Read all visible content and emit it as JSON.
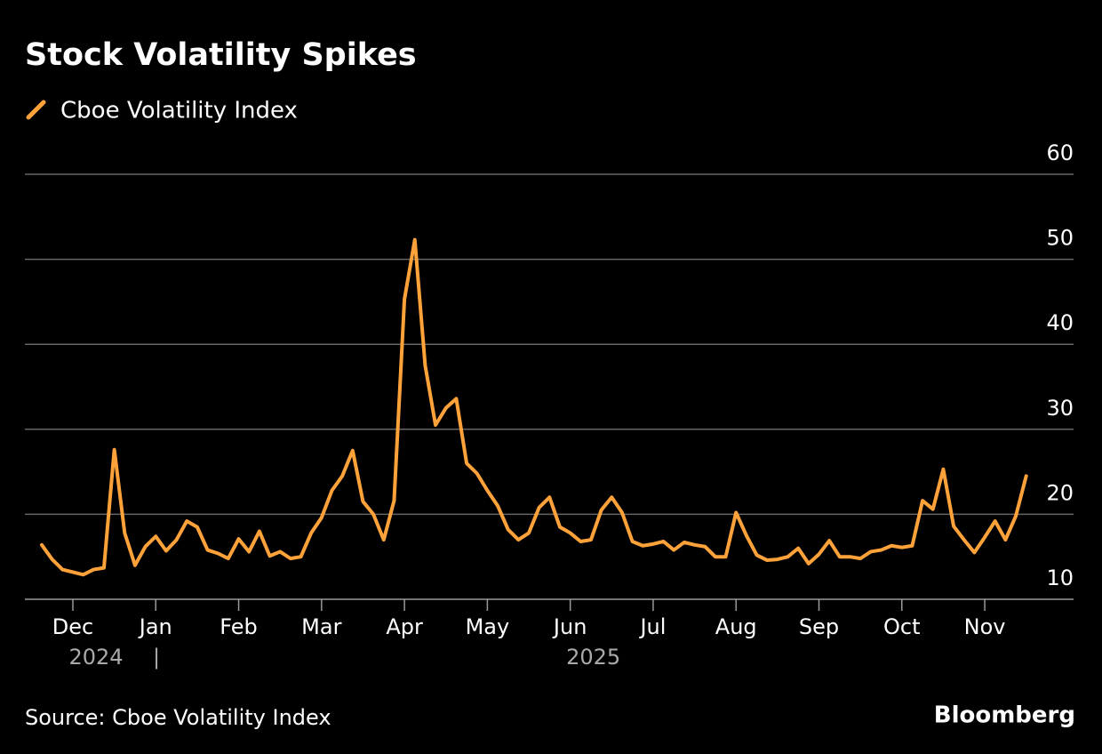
{
  "chart_data": {
    "type": "line",
    "title": "Stock Volatility Spikes",
    "source": "Source: Cboe Volatility Index",
    "logo": "Bloomberg",
    "years": [
      "2024",
      "2025"
    ],
    "categories": [
      null,
      null,
      null,
      "Dec",
      null,
      null,
      null,
      null,
      null,
      null,
      null,
      "Jan",
      null,
      null,
      null,
      null,
      null,
      null,
      null,
      "Feb",
      null,
      null,
      null,
      null,
      null,
      null,
      null,
      "Mar",
      null,
      null,
      null,
      null,
      null,
      null,
      null,
      "Apr",
      null,
      null,
      null,
      null,
      null,
      null,
      null,
      "May",
      null,
      null,
      null,
      null,
      null,
      null,
      null,
      "Jun",
      null,
      null,
      null,
      null,
      null,
      null,
      null,
      "Jul",
      null,
      null,
      null,
      null,
      null,
      null,
      null,
      "Aug",
      null,
      null,
      null,
      null,
      null,
      null,
      null,
      "Sep",
      null,
      null,
      null,
      null,
      null,
      null,
      null,
      "Oct",
      null,
      null,
      null,
      null,
      null,
      null,
      null,
      "Nov",
      null,
      null,
      null,
      null
    ],
    "series": [
      {
        "name": "Cboe Volatility Index",
        "color": "#ffa23a",
        "values": [
          16.4,
          14.7,
          13.5,
          13.2,
          12.9,
          13.5,
          13.7,
          27.6,
          17.8,
          14.0,
          16.2,
          17.4,
          15.7,
          17.0,
          19.2,
          18.5,
          15.8,
          15.4,
          14.8,
          17.1,
          15.6,
          18.0,
          15.1,
          15.6,
          14.8,
          15.0,
          17.8,
          19.6,
          22.8,
          24.5,
          27.5,
          21.5,
          20.0,
          17.0,
          21.6,
          45.3,
          52.3,
          37.5,
          30.5,
          32.5,
          33.6,
          26.0,
          24.8,
          22.8,
          21.0,
          18.2,
          17.0,
          17.8,
          20.8,
          22.0,
          18.5,
          17.8,
          16.8,
          17.0,
          20.5,
          22.0,
          20.2,
          16.8,
          16.3,
          16.5,
          16.8,
          15.8,
          16.7,
          16.4,
          16.2,
          15.0,
          15.0,
          20.2,
          17.5,
          15.2,
          14.6,
          14.7,
          15.0,
          16.0,
          14.2,
          15.3,
          16.9,
          15.0,
          15.0,
          14.8,
          15.6,
          15.8,
          16.3,
          16.1,
          16.3,
          21.6,
          20.6,
          25.3,
          18.6,
          17.0,
          15.5,
          17.3,
          19.2,
          17.0,
          19.8,
          24.5
        ]
      }
    ],
    "ylim": [
      10,
      60
    ],
    "yticks": [
      10,
      20,
      30,
      40,
      50,
      60
    ],
    "grid": true
  }
}
